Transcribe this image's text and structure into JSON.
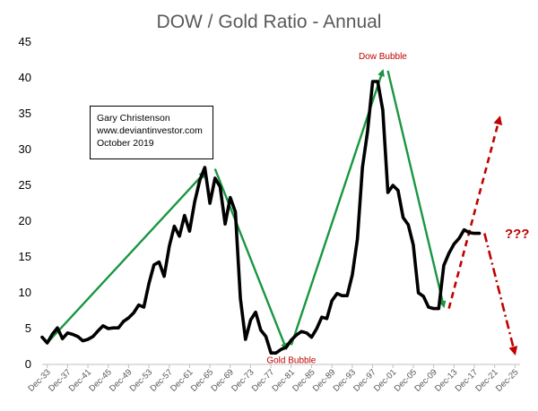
{
  "chart_data": {
    "type": "line",
    "title": "DOW / Gold Ratio - Annual",
    "xlabel": "",
    "ylabel": "",
    "ylim": [
      0,
      45
    ],
    "yticks": [
      0,
      5,
      10,
      15,
      20,
      25,
      30,
      35,
      40,
      45
    ],
    "xlim": [
      1932,
      2026
    ],
    "xticks": [
      {
        "year": 1933,
        "label": "Dec-33"
      },
      {
        "year": 1937,
        "label": "Dec-37"
      },
      {
        "year": 1941,
        "label": "Dec-41"
      },
      {
        "year": 1945,
        "label": "Dec-45"
      },
      {
        "year": 1949,
        "label": "Dec-49"
      },
      {
        "year": 1953,
        "label": "Dec-53"
      },
      {
        "year": 1957,
        "label": "Dec-57"
      },
      {
        "year": 1961,
        "label": "Dec-61"
      },
      {
        "year": 1965,
        "label": "Dec-65"
      },
      {
        "year": 1969,
        "label": "Dec-69"
      },
      {
        "year": 1973,
        "label": "Dec-73"
      },
      {
        "year": 1977,
        "label": "Dec-77"
      },
      {
        "year": 1981,
        "label": "Dec-81"
      },
      {
        "year": 1985,
        "label": "Dec-85"
      },
      {
        "year": 1989,
        "label": "Dec-89"
      },
      {
        "year": 1993,
        "label": "Dec-93"
      },
      {
        "year": 1997,
        "label": "Dec-97"
      },
      {
        "year": 2001,
        "label": "Dec-01"
      },
      {
        "year": 2005,
        "label": "Dec-05"
      },
      {
        "year": 2009,
        "label": "Dec-09"
      },
      {
        "year": 2013,
        "label": "Dec-13"
      },
      {
        "year": 2017,
        "label": "Dec-17"
      },
      {
        "year": 2021,
        "label": "Dec-21"
      },
      {
        "year": 2025,
        "label": "Dec-25"
      }
    ],
    "series": [
      {
        "name": "DOW / Gold Ratio",
        "color": "#000000",
        "x": [
          1932,
          1933,
          1934,
          1935,
          1936,
          1937,
          1938,
          1939,
          1940,
          1941,
          1942,
          1943,
          1944,
          1945,
          1946,
          1947,
          1948,
          1949,
          1950,
          1951,
          1952,
          1953,
          1954,
          1955,
          1956,
          1957,
          1958,
          1959,
          1960,
          1961,
          1962,
          1963,
          1964,
          1965,
          1966,
          1967,
          1968,
          1969,
          1970,
          1971,
          1972,
          1973,
          1974,
          1975,
          1976,
          1977,
          1978,
          1979,
          1980,
          1981,
          1982,
          1983,
          1984,
          1985,
          1986,
          1987,
          1988,
          1989,
          1990,
          1991,
          1992,
          1993,
          1994,
          1995,
          1996,
          1997,
          1998,
          1999,
          2000,
          2001,
          2002,
          2003,
          2004,
          2005,
          2006,
          2007,
          2008,
          2009,
          2010,
          2011,
          2012,
          2013,
          2014,
          2015,
          2016,
          2017,
          2018,
          2019
        ],
        "y": [
          3.8,
          3.0,
          4.2,
          5.1,
          3.6,
          4.4,
          4.2,
          3.9,
          3.3,
          3.5,
          3.9,
          4.7,
          5.4,
          5.0,
          5.1,
          5.1,
          6.0,
          6.5,
          7.2,
          8.3,
          8.0,
          11.3,
          13.9,
          14.3,
          12.3,
          16.5,
          19.3,
          17.9,
          20.8,
          18.6,
          22.7,
          25.7,
          27.5,
          22.5,
          26.0,
          24.8,
          19.6,
          23.3,
          21.3,
          9.2,
          3.5,
          6.2,
          7.3,
          4.8,
          3.9,
          1.6,
          1.6,
          2.1,
          2.4,
          3.4,
          4.1,
          4.6,
          4.4,
          3.8,
          5.0,
          6.6,
          6.4,
          8.9,
          9.9,
          9.6,
          9.6,
          12.5,
          17.5,
          27.5,
          32.5,
          39.5,
          39.5,
          35.5,
          24.0,
          25.0,
          24.3,
          20.5,
          19.5,
          16.7,
          10.0,
          9.5,
          8.0,
          7.8,
          7.8,
          13.8,
          15.5,
          16.8,
          17.6,
          18.8,
          18.4,
          18.3,
          18.3,
          null
        ]
      }
    ],
    "trend_arrows": [
      {
        "name": "rise-1930s-1960s",
        "color": "#1a9641",
        "from": [
          1933,
          3.0
        ],
        "to": [
          1964,
          26.8
        ]
      },
      {
        "name": "fall-1966-1980",
        "color": "#1a9641",
        "from": [
          1966,
          27.3
        ],
        "to": [
          1980,
          2.2
        ]
      },
      {
        "name": "rise-1981-1999",
        "color": "#1a9641",
        "from": [
          1981,
          2.7
        ],
        "to": [
          1999,
          41.0
        ]
      },
      {
        "name": "fall-2000-2011",
        "color": "#1a9641",
        "from": [
          2000,
          41.0
        ],
        "to": [
          2011,
          8.1
        ]
      },
      {
        "name": "projection-up",
        "color": "#c00000",
        "dashed": true,
        "from": [
          2012,
          7.8
        ],
        "to": [
          2022,
          34.5
        ]
      },
      {
        "name": "projection-down",
        "color": "#c00000",
        "dashed": true,
        "from": [
          2019,
          18.3
        ],
        "to": [
          2025,
          1.5
        ]
      }
    ],
    "annotations": [
      {
        "text": "Dow Bubble",
        "x": 1999,
        "y": 42.6
      },
      {
        "text": "Gold Bubble",
        "x": 1981,
        "y": 0.2
      },
      {
        "text": "???",
        "x": 2023,
        "y": 17.6
      }
    ]
  },
  "info_box": {
    "lines": [
      "Gary Christenson",
      "www.deviantinvestor.com",
      "October 2019"
    ]
  }
}
